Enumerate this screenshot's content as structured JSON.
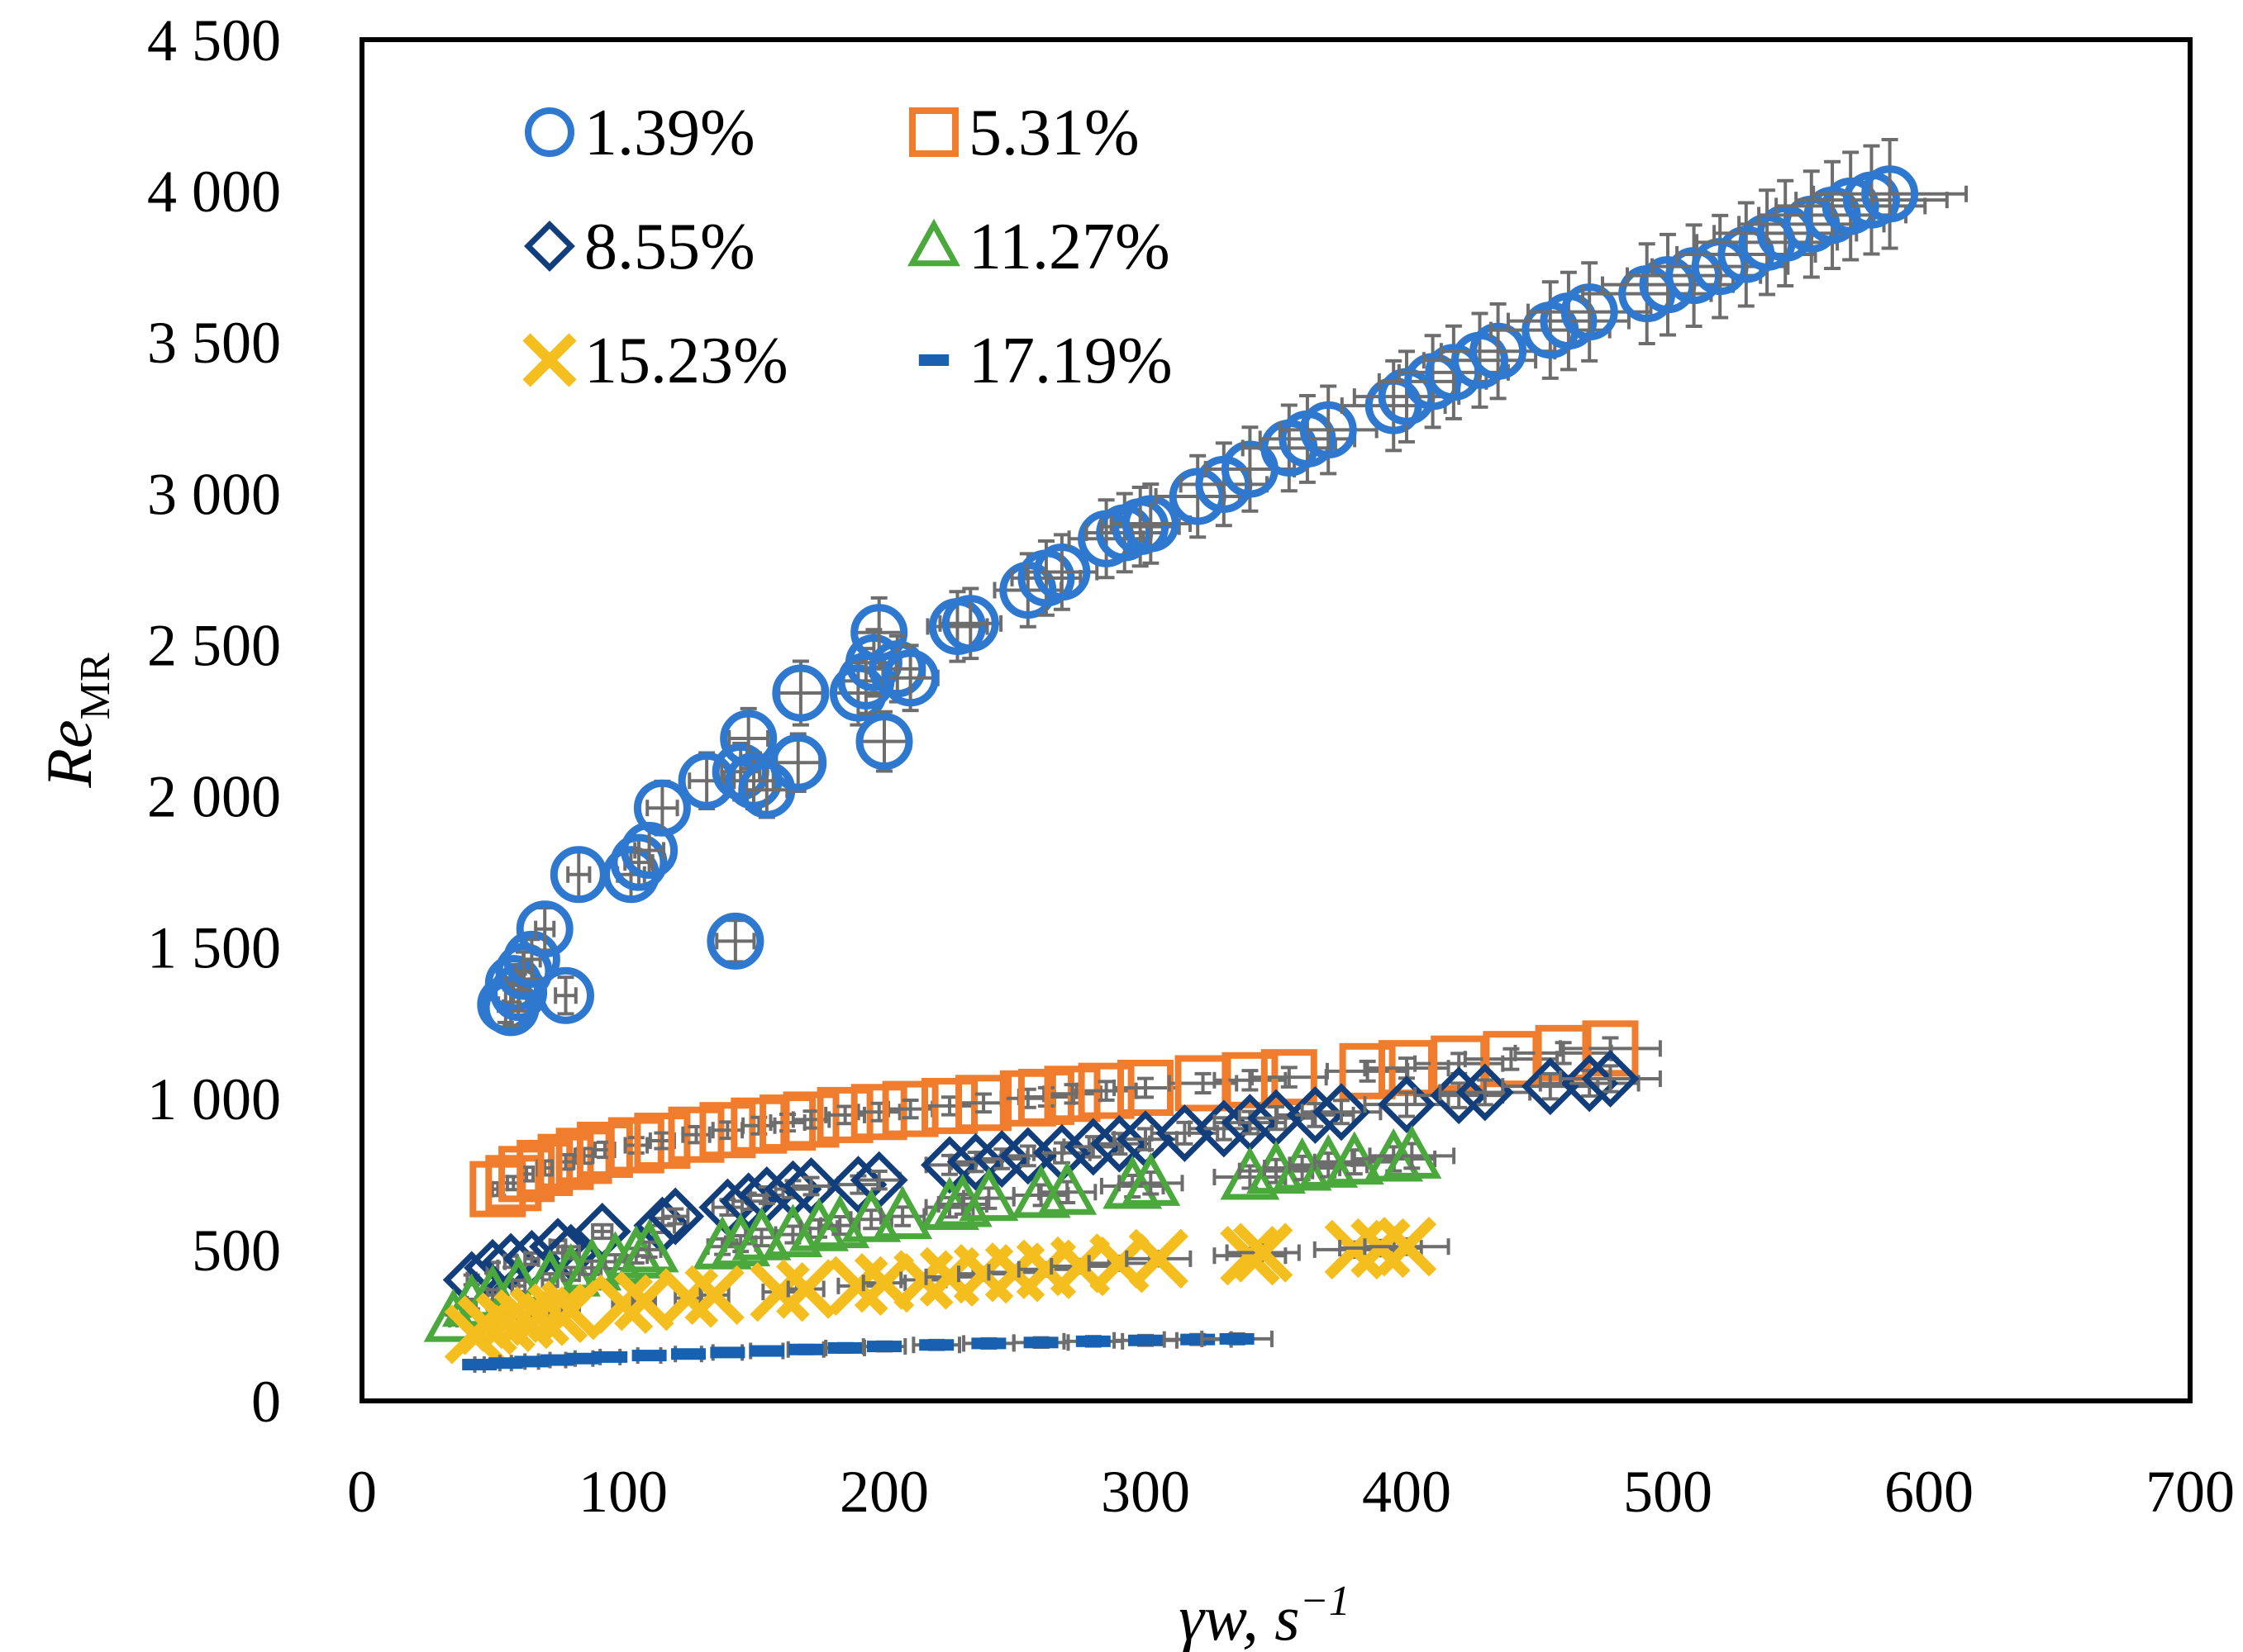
{
  "chart_data": {
    "type": "scatter",
    "title": "",
    "xlabel_main": "γw, s",
    "xlabel_sup": "−1",
    "ylabel_main": "Re",
    "ylabel_sub": "MR",
    "xlim": [
      0,
      700
    ],
    "ylim": [
      0,
      4500
    ],
    "x_ticks": [
      0,
      100,
      200,
      300,
      400,
      500,
      600,
      700
    ],
    "x_tick_labels": [
      "0",
      "100",
      "200",
      "300",
      "400",
      "500",
      "600",
      "700"
    ],
    "y_ticks": [
      0,
      500,
      1000,
      1500,
      2000,
      2500,
      3000,
      3500,
      4000,
      4500
    ],
    "y_tick_labels": [
      "0",
      "500",
      "1 000",
      "1 500",
      "2 000",
      "2 500",
      "3 000",
      "3 500",
      "4 000",
      "4 500"
    ],
    "grid": false,
    "legend_position": "top-left",
    "error_bar_color": "#6d6d6d",
    "series": [
      {
        "name": "1.39%",
        "marker": "circle",
        "color": "#2e79cf",
        "y_error_frac": 0.045,
        "x_error_frac": 0.05,
        "points": [
          [
            55,
            1310
          ],
          [
            57,
            1300
          ],
          [
            58,
            1380
          ],
          [
            60,
            1350
          ],
          [
            62,
            1420
          ],
          [
            65,
            1460
          ],
          [
            70,
            1560
          ],
          [
            78,
            1340
          ],
          [
            83,
            1740
          ],
          [
            103,
            1740
          ],
          [
            106,
            1780
          ],
          [
            110,
            1820
          ],
          [
            115,
            1960
          ],
          [
            132,
            2050
          ],
          [
            143,
            1520
          ],
          [
            145,
            2080
          ],
          [
            148,
            2190
          ],
          [
            150,
            2050
          ],
          [
            155,
            2020
          ],
          [
            167,
            2110
          ],
          [
            168,
            2340
          ],
          [
            190,
            2340
          ],
          [
            193,
            2380
          ],
          [
            196,
            2440
          ],
          [
            198,
            2540
          ],
          [
            200,
            2180
          ],
          [
            205,
            2420
          ],
          [
            210,
            2390
          ],
          [
            228,
            2560
          ],
          [
            233,
            2570
          ],
          [
            255,
            2680
          ],
          [
            262,
            2720
          ],
          [
            268,
            2740
          ],
          [
            285,
            2850
          ],
          [
            292,
            2870
          ],
          [
            298,
            2890
          ],
          [
            302,
            2900
          ],
          [
            320,
            2990
          ],
          [
            330,
            3030
          ],
          [
            340,
            3080
          ],
          [
            355,
            3150
          ],
          [
            362,
            3180
          ],
          [
            370,
            3210
          ],
          [
            395,
            3290
          ],
          [
            400,
            3320
          ],
          [
            410,
            3370
          ],
          [
            418,
            3400
          ],
          [
            428,
            3440
          ],
          [
            435,
            3470
          ],
          [
            455,
            3540
          ],
          [
            462,
            3570
          ],
          [
            470,
            3600
          ],
          [
            492,
            3660
          ],
          [
            500,
            3690
          ],
          [
            510,
            3720
          ],
          [
            520,
            3750
          ],
          [
            530,
            3790
          ],
          [
            538,
            3830
          ],
          [
            545,
            3860
          ],
          [
            555,
            3890
          ],
          [
            563,
            3920
          ],
          [
            570,
            3950
          ],
          [
            578,
            3970
          ],
          [
            585,
            3990
          ]
        ]
      },
      {
        "name": "5.31%",
        "marker": "square",
        "color": "#f07d2d",
        "y_error_frac": 0.03,
        "x_error_frac": 0.04,
        "points": [
          [
            52,
            700
          ],
          [
            58,
            720
          ],
          [
            63,
            750
          ],
          [
            70,
            770
          ],
          [
            78,
            790
          ],
          [
            85,
            810
          ],
          [
            93,
            830
          ],
          [
            105,
            845
          ],
          [
            115,
            860
          ],
          [
            128,
            880
          ],
          [
            140,
            895
          ],
          [
            152,
            910
          ],
          [
            163,
            920
          ],
          [
            172,
            930
          ],
          [
            185,
            945
          ],
          [
            198,
            955
          ],
          [
            210,
            965
          ],
          [
            225,
            975
          ],
          [
            238,
            985
          ],
          [
            255,
            1000
          ],
          [
            262,
            1005
          ],
          [
            272,
            1015
          ],
          [
            285,
            1025
          ],
          [
            300,
            1035
          ],
          [
            322,
            1050
          ],
          [
            340,
            1060
          ],
          [
            355,
            1070
          ],
          [
            385,
            1090
          ],
          [
            400,
            1100
          ],
          [
            420,
            1115
          ],
          [
            440,
            1130
          ],
          [
            460,
            1150
          ],
          [
            478,
            1165
          ]
        ]
      },
      {
        "name": "8.55%",
        "marker": "diamond",
        "color": "#123f7c",
        "y_error_frac": 0.04,
        "x_error_frac": 0.04,
        "points": [
          [
            42,
            400
          ],
          [
            50,
            440
          ],
          [
            57,
            460
          ],
          [
            65,
            470
          ],
          [
            75,
            510
          ],
          [
            80,
            490
          ],
          [
            92,
            560
          ],
          [
            115,
            580
          ],
          [
            120,
            610
          ],
          [
            140,
            640
          ],
          [
            148,
            660
          ],
          [
            155,
            680
          ],
          [
            165,
            700
          ],
          [
            172,
            710
          ],
          [
            190,
            715
          ],
          [
            198,
            730
          ],
          [
            225,
            780
          ],
          [
            235,
            790
          ],
          [
            245,
            800
          ],
          [
            255,
            810
          ],
          [
            268,
            820
          ],
          [
            280,
            840
          ],
          [
            290,
            850
          ],
          [
            300,
            865
          ],
          [
            315,
            885
          ],
          [
            330,
            900
          ],
          [
            340,
            920
          ],
          [
            350,
            935
          ],
          [
            365,
            945
          ],
          [
            375,
            955
          ],
          [
            400,
            980
          ],
          [
            420,
            1010
          ],
          [
            430,
            1020
          ],
          [
            455,
            1040
          ],
          [
            470,
            1050
          ],
          [
            478,
            1065
          ]
        ]
      },
      {
        "name": "11.27%",
        "marker": "triangle",
        "color": "#4aa83c",
        "y_error_frac": 0.05,
        "x_error_frac": 0.04,
        "points": [
          [
            35,
            270
          ],
          [
            42,
            320
          ],
          [
            50,
            350
          ],
          [
            60,
            380
          ],
          [
            72,
            400
          ],
          [
            80,
            420
          ],
          [
            88,
            440
          ],
          [
            97,
            460
          ],
          [
            105,
            480
          ],
          [
            110,
            500
          ],
          [
            138,
            510
          ],
          [
            145,
            520
          ],
          [
            153,
            540
          ],
          [
            165,
            550
          ],
          [
            175,
            570
          ],
          [
            183,
            580
          ],
          [
            195,
            600
          ],
          [
            207,
            610
          ],
          [
            225,
            640
          ],
          [
            230,
            650
          ],
          [
            240,
            670
          ],
          [
            260,
            680
          ],
          [
            270,
            690
          ],
          [
            295,
            710
          ],
          [
            302,
            720
          ],
          [
            340,
            740
          ],
          [
            350,
            760
          ],
          [
            360,
            770
          ],
          [
            370,
            780
          ],
          [
            380,
            790
          ],
          [
            395,
            800
          ],
          [
            402,
            810
          ]
        ]
      },
      {
        "name": "15.23%",
        "marker": "x",
        "color": "#f4bf1e",
        "y_error_frac": 0.05,
        "x_error_frac": 0.04,
        "points": [
          [
            43,
            220
          ],
          [
            48,
            250
          ],
          [
            55,
            260
          ],
          [
            62,
            270
          ],
          [
            68,
            280
          ],
          [
            75,
            290
          ],
          [
            80,
            300
          ],
          [
            100,
            320
          ],
          [
            108,
            330
          ],
          [
            125,
            340
          ],
          [
            135,
            350
          ],
          [
            160,
            360
          ],
          [
            170,
            370
          ],
          [
            190,
            380
          ],
          [
            200,
            390
          ],
          [
            215,
            400
          ],
          [
            225,
            410
          ],
          [
            238,
            420
          ],
          [
            250,
            425
          ],
          [
            262,
            435
          ],
          [
            275,
            445
          ],
          [
            290,
            455
          ],
          [
            305,
            470
          ],
          [
            340,
            480
          ],
          [
            345,
            490
          ],
          [
            380,
            500
          ],
          [
            390,
            505
          ],
          [
            400,
            510
          ]
        ]
      },
      {
        "name": "17.19%",
        "marker": "dash",
        "color": "#1761b0",
        "y_error_frac": 0.08,
        "x_error_frac": 0.04,
        "points": [
          [
            45,
            120
          ],
          [
            55,
            125
          ],
          [
            65,
            130
          ],
          [
            75,
            135
          ],
          [
            85,
            140
          ],
          [
            95,
            145
          ],
          [
            110,
            150
          ],
          [
            125,
            155
          ],
          [
            140,
            160
          ],
          [
            155,
            165
          ],
          [
            170,
            170
          ],
          [
            185,
            175
          ],
          [
            200,
            180
          ],
          [
            220,
            185
          ],
          [
            240,
            190
          ],
          [
            260,
            193
          ],
          [
            280,
            197
          ],
          [
            300,
            200
          ],
          [
            320,
            203
          ],
          [
            335,
            205
          ]
        ]
      }
    ]
  }
}
